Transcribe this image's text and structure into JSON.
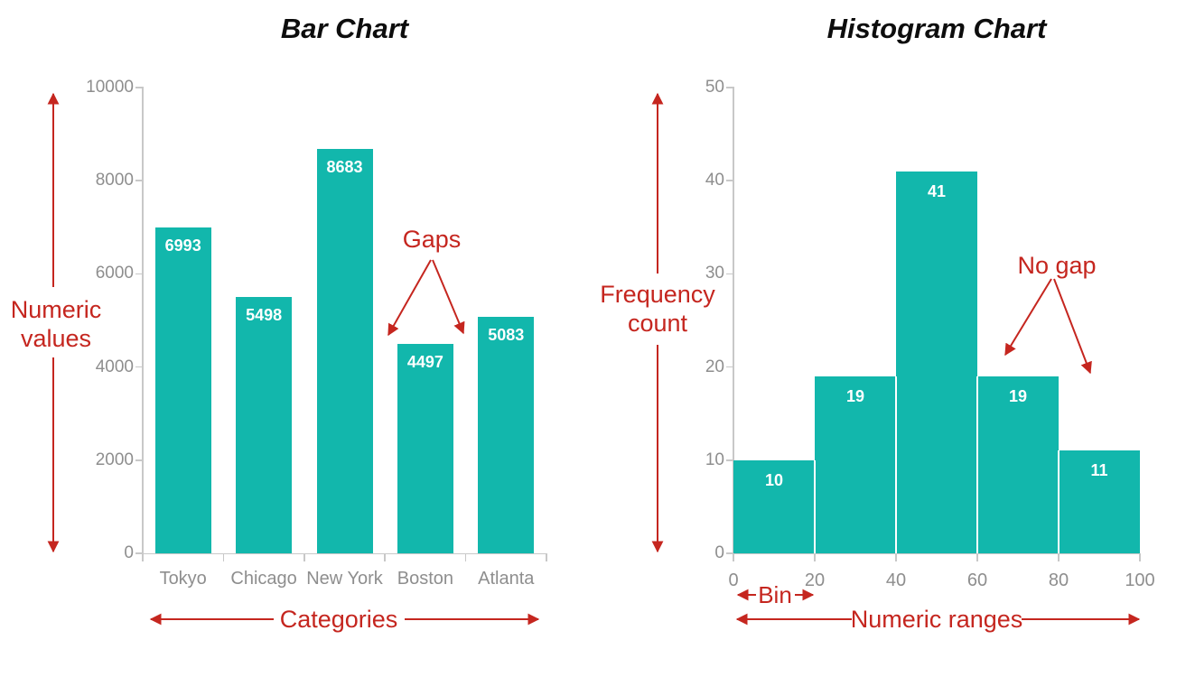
{
  "colors": {
    "teal": "#12b7ac",
    "red": "#c5261f",
    "axis": "#c8c8c8",
    "muted": "#8e8e8e",
    "title": "#0d0d0d",
    "value_label": "#ffffff"
  },
  "chart_data": [
    {
      "type": "bar",
      "title": "Bar Chart",
      "categories": [
        "Tokyo",
        "Chicago",
        "New York",
        "Boston",
        "Atlanta"
      ],
      "values": [
        6993,
        5498,
        8683,
        4497,
        5083
      ],
      "ylim": [
        0,
        10000
      ],
      "yticks": [
        0,
        2000,
        4000,
        6000,
        8000,
        10000
      ],
      "grid": false,
      "legend": false,
      "annotations": {
        "y_axis_label": "Numeric values",
        "x_axis_label": "Categories",
        "gap_label": "Gaps"
      }
    },
    {
      "type": "histogram",
      "title": "Histogram Chart",
      "bin_edges": [
        0,
        20,
        40,
        60,
        80,
        100
      ],
      "values": [
        10,
        19,
        41,
        19,
        11
      ],
      "ylim": [
        0,
        50
      ],
      "yticks": [
        0,
        10,
        20,
        30,
        40,
        50
      ],
      "grid": false,
      "legend": false,
      "annotations": {
        "y_axis_label": "Frequency count",
        "x_axis_label": "Numeric ranges",
        "no_gap_label": "No gap",
        "bin_label": "Bin"
      }
    }
  ]
}
